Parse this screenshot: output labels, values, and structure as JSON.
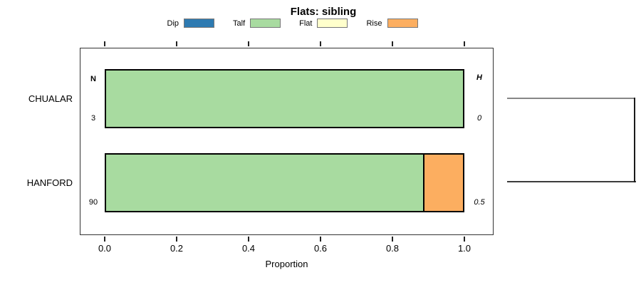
{
  "title": "Flats: sibling",
  "legend": {
    "items": [
      {
        "label": "Dip",
        "color": "#2d7ab1"
      },
      {
        "label": "Talf",
        "color": "#a8dba0"
      },
      {
        "label": "Flat",
        "color": "#ffffcc"
      },
      {
        "label": "Rise",
        "color": "#fcae60"
      }
    ]
  },
  "chart_data": {
    "type": "bar",
    "orientation": "horizontal",
    "stacked": true,
    "title": "Flats: sibling",
    "xlabel": "Proportion",
    "xlim": [
      0,
      1
    ],
    "x_ticks": [
      "0.0",
      "0.2",
      "0.4",
      "0.6",
      "0.8",
      "1.0"
    ],
    "grid": false,
    "legend_position": "top",
    "categories": [
      "CHUALAR",
      "HANFORD"
    ],
    "series": [
      {
        "name": "Dip",
        "color": "#2d7ab1",
        "values": [
          0,
          0
        ]
      },
      {
        "name": "Talf",
        "color": "#a8dba0",
        "values": [
          1.0,
          0.889
        ]
      },
      {
        "name": "Flat",
        "color": "#ffffcc",
        "values": [
          0,
          0
        ]
      },
      {
        "name": "Rise",
        "color": "#fcae60",
        "values": [
          0,
          0.111
        ]
      }
    ],
    "annotations": {
      "n_header": "N",
      "h_header": "H",
      "rows": [
        {
          "category": "CHUALAR",
          "n": "3",
          "h": "0"
        },
        {
          "category": "HANFORD",
          "n": "90",
          "h": "0.5"
        }
      ]
    },
    "right_bracket": {
      "type": "dendrogram-join",
      "joins": [
        "CHUALAR",
        "HANFORD"
      ]
    }
  }
}
